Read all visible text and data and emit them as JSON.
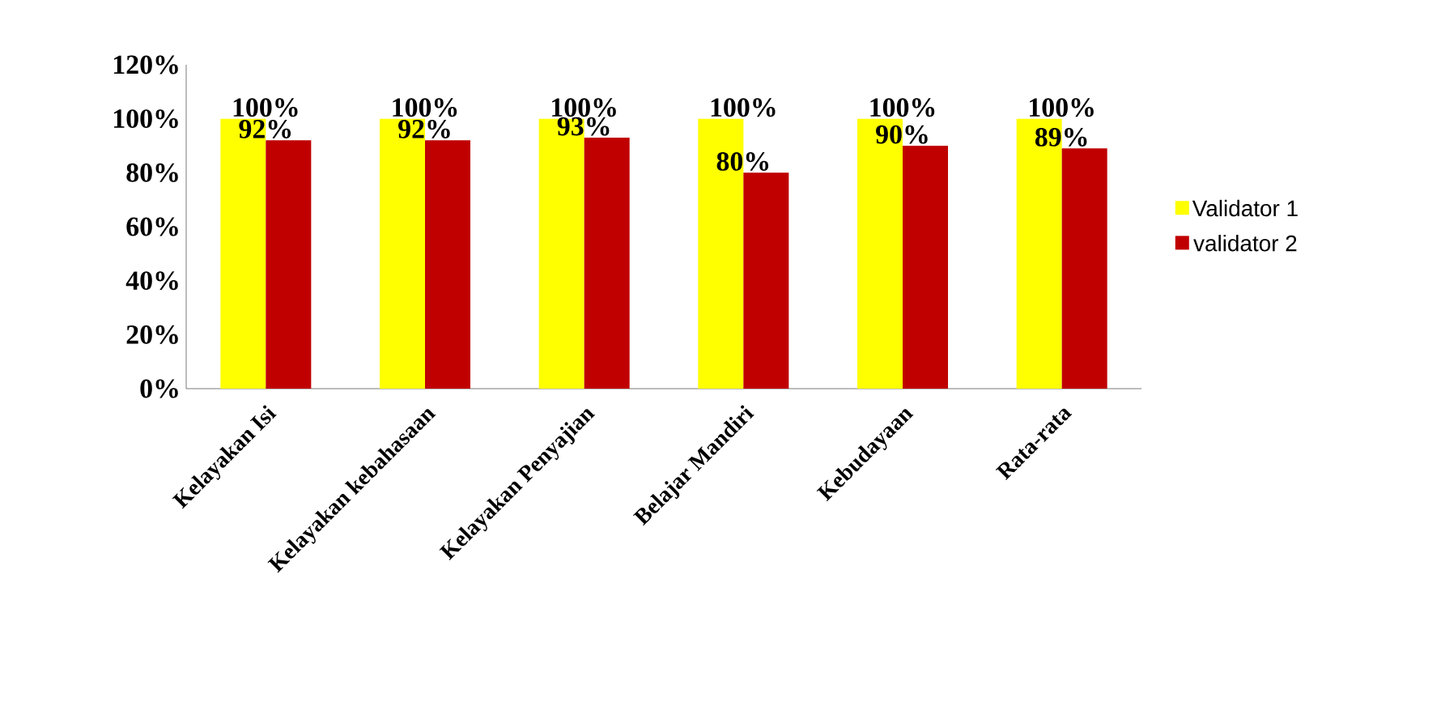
{
  "chart_data": {
    "type": "bar",
    "categories": [
      "Kelayakan Isi",
      "Kelayakan kebahasaan",
      "Kelayakan Penyajian",
      "Belajar Mandiri",
      "Kebudayaan",
      "Rata-rata"
    ],
    "series": [
      {
        "name": "Validator 1",
        "color": "#ffff00",
        "values": [
          100,
          100,
          100,
          100,
          100,
          100
        ],
        "value_labels": [
          "100%",
          "100%",
          "100%",
          "100%",
          "100%",
          "100%"
        ]
      },
      {
        "name": "validator 2",
        "color": "#c00000",
        "values": [
          92,
          92,
          93,
          80,
          90,
          89
        ],
        "value_labels": [
          "92%",
          "92%",
          "93%",
          "80%",
          "90%",
          "89%"
        ]
      }
    ],
    "ylim": [
      0,
      120
    ],
    "yticks": [
      {
        "value": 0,
        "label": "0%"
      },
      {
        "value": 20,
        "label": "20%"
      },
      {
        "value": 40,
        "label": "40%"
      },
      {
        "value": 60,
        "label": "60%"
      },
      {
        "value": 80,
        "label": "80%"
      },
      {
        "value": 100,
        "label": "100%"
      },
      {
        "value": 120,
        "label": "120%"
      }
    ],
    "grid": false,
    "legend": "right"
  }
}
